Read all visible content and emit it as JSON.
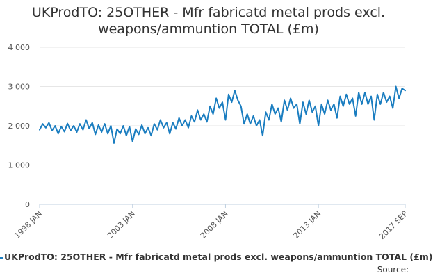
{
  "title": {
    "line1": "UKProdTO: 25OTHER - Mfr fabricatd metal prods excl.",
    "line2": "weapons/ammuntion TOTAL (£m)"
  },
  "legend": {
    "label": "UKProdTO: 25OTHER - Mfr fabricatd metal prods excl. weapons/ammuntion TOTAL (£m)"
  },
  "source": {
    "label": "Source:"
  },
  "colors": {
    "series": "#1a7dc0",
    "grid": "#e6e6e6",
    "axis": "#c0d0e0",
    "text": "#333333"
  },
  "chart_data": {
    "type": "line",
    "title": "UKProdTO: 25OTHER - Mfr fabricatd metal prods excl. weapons/ammuntion TOTAL (£m)",
    "xlabel": "",
    "ylabel": "",
    "ylim": [
      0,
      4000
    ],
    "yticks": [
      0,
      1000,
      2000,
      3000,
      4000
    ],
    "ytick_labels": [
      "0",
      "1 000",
      "2 000",
      "3 000",
      "4 000"
    ],
    "xlim": [
      "1998-01",
      "2017-09"
    ],
    "xticks": [
      "1998-01",
      "2003-01",
      "2008-01",
      "2013-01",
      "2017-09"
    ],
    "xtick_labels": [
      "1998 JAN",
      "2003 JAN",
      "2008 JAN",
      "2013 JAN",
      "2017 SEP"
    ],
    "grid": true,
    "legend_position": "bottom",
    "series": [
      {
        "name": "UKProdTO: 25OTHER - Mfr fabricatd metal prods excl. weapons/ammuntion TOTAL (£m)",
        "points": [
          [
            "1998-01",
            1900
          ],
          [
            "1998-03",
            2050
          ],
          [
            "1998-05",
            1950
          ],
          [
            "1998-07",
            2080
          ],
          [
            "1998-09",
            1880
          ],
          [
            "1998-11",
            2000
          ],
          [
            "1999-01",
            1800
          ],
          [
            "1999-03",
            1980
          ],
          [
            "1999-05",
            1850
          ],
          [
            "1999-07",
            2060
          ],
          [
            "1999-09",
            1880
          ],
          [
            "1999-11",
            2000
          ],
          [
            "2000-01",
            1840
          ],
          [
            "2000-03",
            2050
          ],
          [
            "2000-05",
            1900
          ],
          [
            "2000-07",
            2150
          ],
          [
            "2000-09",
            1930
          ],
          [
            "2000-11",
            2080
          ],
          [
            "2001-01",
            1780
          ],
          [
            "2001-03",
            2020
          ],
          [
            "2001-05",
            1840
          ],
          [
            "2001-07",
            2050
          ],
          [
            "2001-09",
            1800
          ],
          [
            "2001-11",
            2000
          ],
          [
            "2002-01",
            1560
          ],
          [
            "2002-03",
            1920
          ],
          [
            "2002-05",
            1800
          ],
          [
            "2002-07",
            2000
          ],
          [
            "2002-09",
            1750
          ],
          [
            "2002-11",
            1980
          ],
          [
            "2003-01",
            1600
          ],
          [
            "2003-03",
            1920
          ],
          [
            "2003-05",
            1780
          ],
          [
            "2003-07",
            2020
          ],
          [
            "2003-09",
            1800
          ],
          [
            "2003-11",
            1950
          ],
          [
            "2004-01",
            1750
          ],
          [
            "2004-03",
            2050
          ],
          [
            "2004-05",
            1900
          ],
          [
            "2004-07",
            2150
          ],
          [
            "2004-09",
            1950
          ],
          [
            "2004-11",
            2080
          ],
          [
            "2005-01",
            1800
          ],
          [
            "2005-03",
            2080
          ],
          [
            "2005-05",
            1920
          ],
          [
            "2005-07",
            2200
          ],
          [
            "2005-09",
            2000
          ],
          [
            "2005-11",
            2150
          ],
          [
            "2006-01",
            1950
          ],
          [
            "2006-03",
            2250
          ],
          [
            "2006-05",
            2100
          ],
          [
            "2006-07",
            2400
          ],
          [
            "2006-09",
            2150
          ],
          [
            "2006-11",
            2300
          ],
          [
            "2007-01",
            2100
          ],
          [
            "2007-03",
            2500
          ],
          [
            "2007-05",
            2300
          ],
          [
            "2007-07",
            2700
          ],
          [
            "2007-09",
            2450
          ],
          [
            "2007-11",
            2600
          ],
          [
            "2008-01",
            2150
          ],
          [
            "2008-03",
            2800
          ],
          [
            "2008-05",
            2600
          ],
          [
            "2008-07",
            2900
          ],
          [
            "2008-09",
            2650
          ],
          [
            "2008-11",
            2500
          ],
          [
            "2009-01",
            2050
          ],
          [
            "2009-03",
            2300
          ],
          [
            "2009-05",
            2050
          ],
          [
            "2009-07",
            2250
          ],
          [
            "2009-09",
            2000
          ],
          [
            "2009-11",
            2150
          ],
          [
            "2010-01",
            1750
          ],
          [
            "2010-03",
            2350
          ],
          [
            "2010-05",
            2150
          ],
          [
            "2010-07",
            2550
          ],
          [
            "2010-09",
            2300
          ],
          [
            "2010-11",
            2450
          ],
          [
            "2011-01",
            2100
          ],
          [
            "2011-03",
            2650
          ],
          [
            "2011-05",
            2400
          ],
          [
            "2011-07",
            2700
          ],
          [
            "2011-09",
            2450
          ],
          [
            "2011-11",
            2550
          ],
          [
            "2012-01",
            2050
          ],
          [
            "2012-03",
            2600
          ],
          [
            "2012-05",
            2300
          ],
          [
            "2012-07",
            2650
          ],
          [
            "2012-09",
            2350
          ],
          [
            "2012-11",
            2500
          ],
          [
            "2013-01",
            2000
          ],
          [
            "2013-03",
            2550
          ],
          [
            "2013-05",
            2300
          ],
          [
            "2013-07",
            2650
          ],
          [
            "2013-09",
            2400
          ],
          [
            "2013-11",
            2550
          ],
          [
            "2014-01",
            2200
          ],
          [
            "2014-03",
            2750
          ],
          [
            "2014-05",
            2500
          ],
          [
            "2014-07",
            2800
          ],
          [
            "2014-09",
            2550
          ],
          [
            "2014-11",
            2700
          ],
          [
            "2015-01",
            2250
          ],
          [
            "2015-03",
            2850
          ],
          [
            "2015-05",
            2550
          ],
          [
            "2015-07",
            2850
          ],
          [
            "2015-09",
            2550
          ],
          [
            "2015-11",
            2750
          ],
          [
            "2016-01",
            2150
          ],
          [
            "2016-03",
            2800
          ],
          [
            "2016-05",
            2550
          ],
          [
            "2016-07",
            2850
          ],
          [
            "2016-09",
            2600
          ],
          [
            "2016-11",
            2750
          ],
          [
            "2017-01",
            2450
          ],
          [
            "2017-03",
            3000
          ],
          [
            "2017-05",
            2700
          ],
          [
            "2017-07",
            2950
          ],
          [
            "2017-09",
            2900
          ]
        ]
      }
    ]
  }
}
